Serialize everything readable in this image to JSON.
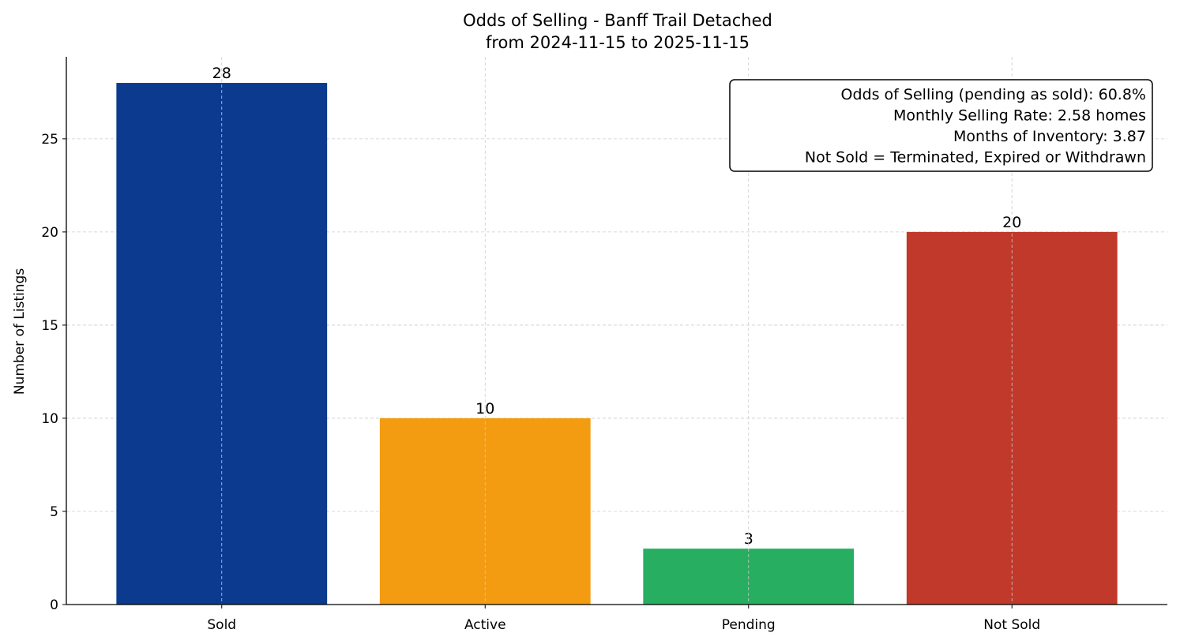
{
  "chart_data": {
    "type": "bar",
    "title": "Odds of Selling - Banff Trail Detached",
    "subtitle": "from 2024-11-15 to 2025-11-15",
    "xlabel": "",
    "ylabel": "Number of Listings",
    "categories": [
      "Sold",
      "Active",
      "Pending",
      "Not Sold"
    ],
    "values": [
      28,
      10,
      3,
      20
    ],
    "data_labels": [
      "28",
      "10",
      "3",
      "20"
    ],
    "colors": [
      "#0b3a8f",
      "#f39c12",
      "#27ae60",
      "#c0392b"
    ],
    "ylim": [
      0,
      29.4
    ],
    "yticks": [
      0,
      5,
      10,
      15,
      20,
      25
    ],
    "grid": true,
    "annotation": [
      "Odds of Selling (pending as sold): 60.8%",
      "Monthly Selling Rate: 2.58 homes",
      "Months of Inventory: 3.87",
      "Not Sold = Terminated, Expired or Withdrawn"
    ],
    "annotation_placement": "top-right"
  }
}
